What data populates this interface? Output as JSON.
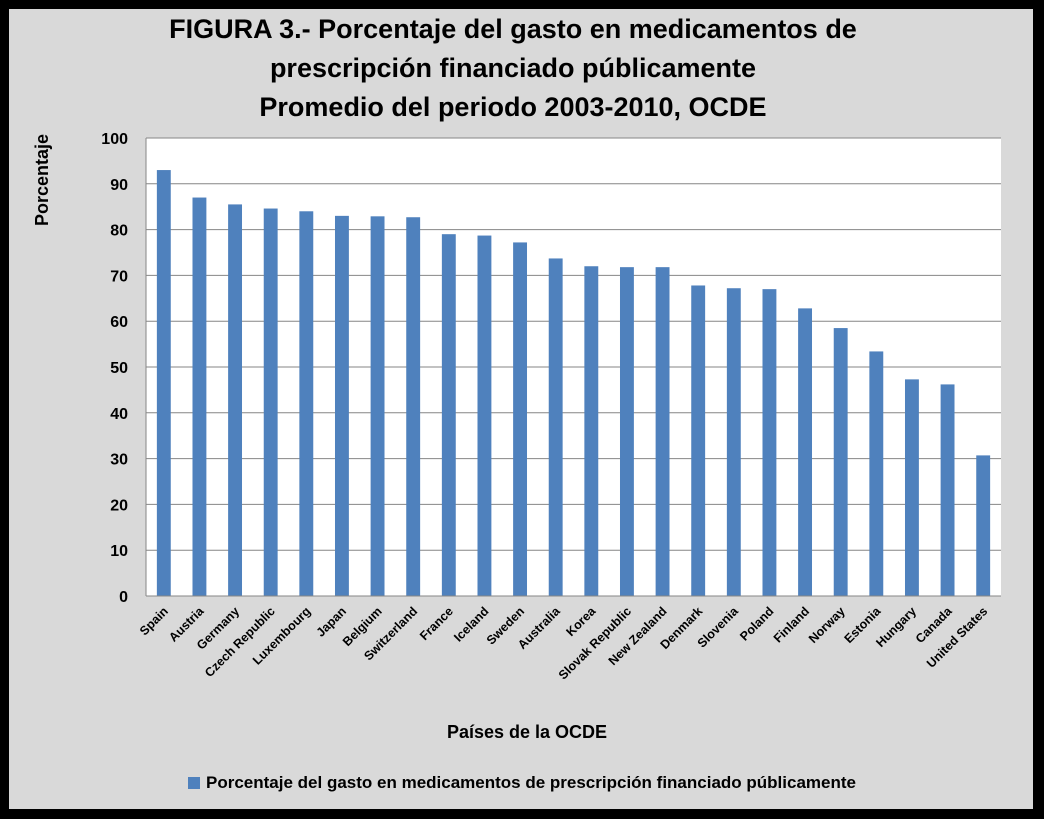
{
  "chart_data": {
    "type": "bar",
    "title_lines": [
      "FIGURA 3.- Porcentaje del gasto en medicamentos de",
      "prescripción financiado públicamente",
      "Promedio del periodo 2003-2010, OCDE"
    ],
    "xlabel": "Países de la OCDE",
    "ylabel": "Porcentaje",
    "ylim": [
      0,
      100
    ],
    "yticks": [
      0,
      10,
      20,
      30,
      40,
      50,
      60,
      70,
      80,
      90,
      100
    ],
    "grid": true,
    "legend_position": "bottom",
    "categories": [
      "Spain",
      "Austria",
      "Germany",
      "Czech Republic",
      "Luxembourg",
      "Japan",
      "Belgium",
      "Switzerland",
      "France",
      "Iceland",
      "Sweden",
      "Australia",
      "Korea",
      "Slovak Republic",
      "New Zealand",
      "Denmark",
      "Slovenia",
      "Poland",
      "Finland",
      "Norway",
      "Estonia",
      "Hungary",
      "Canada",
      "United States"
    ],
    "series": [
      {
        "name": "Porcentaje del gasto en medicamentos de prescripción financiado  públicamente",
        "color": "#4f81bd",
        "values": [
          93.0,
          87.0,
          85.5,
          84.6,
          84.0,
          83.0,
          82.9,
          82.7,
          79.0,
          78.7,
          77.2,
          73.7,
          72.0,
          71.8,
          71.8,
          67.8,
          67.2,
          67.0,
          62.8,
          58.5,
          53.4,
          47.3,
          46.2,
          30.7
        ]
      }
    ]
  }
}
